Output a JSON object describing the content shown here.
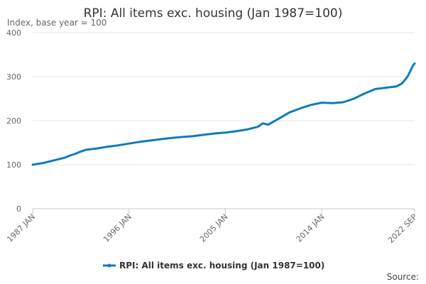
{
  "chart_data": {
    "type": "line",
    "title": "RPI: All items exc. housing (Jan 1987=100)",
    "ylabel": "Index, base year = 100",
    "xlabel": "",
    "ylim": [
      0,
      400
    ],
    "y_ticks": [
      0,
      100,
      200,
      300,
      400
    ],
    "x_tick_labels": [
      "1987 JAN",
      "1996 JAN",
      "2005 JAN",
      "2014 JAN",
      "2022 SEP"
    ],
    "x_tick_values": [
      1987.0,
      1996.0,
      2005.0,
      2014.0,
      2022.667
    ],
    "xlim": [
      1987.0,
      2022.667
    ],
    "grid": true,
    "legend_position": "bottom",
    "color": "#0f7bbd",
    "series": [
      {
        "name": "RPI: All items exc. housing (Jan 1987=100)",
        "x": [
          1987.0,
          1988.0,
          1989.0,
          1990.0,
          1990.5,
          1991.0,
          1991.5,
          1992.0,
          1993.0,
          1994.0,
          1995.0,
          1996.0,
          1997.0,
          1998.0,
          1999.0,
          2000.0,
          2001.0,
          2002.0,
          2003.0,
          2004.0,
          2005.0,
          2006.0,
          2007.0,
          2008.0,
          2008.5,
          2009.0,
          2010.0,
          2011.0,
          2012.0,
          2013.0,
          2014.0,
          2015.0,
          2016.0,
          2017.0,
          2018.0,
          2019.0,
          2020.0,
          2021.0,
          2021.5,
          2022.0,
          2022.25,
          2022.5,
          2022.667
        ],
        "values": [
          100,
          104,
          110,
          116,
          121,
          125,
          130,
          134,
          137,
          141,
          144,
          148,
          152,
          155,
          158,
          161,
          163,
          165,
          168,
          171,
          173,
          176,
          180,
          186,
          194,
          191,
          205,
          219,
          228,
          236,
          241,
          240,
          242,
          250,
          262,
          272,
          275,
          278,
          285,
          300,
          312,
          325,
          330
        ]
      }
    ],
    "source_label": "Source:"
  }
}
